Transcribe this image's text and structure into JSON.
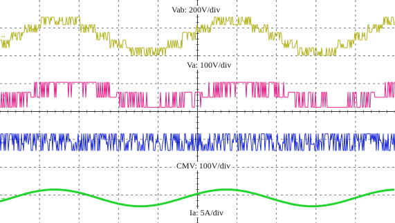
{
  "chart_data": {
    "type": "line",
    "grid": true,
    "grid_divisions": {
      "x": 10,
      "y": 8
    },
    "series": [
      {
        "id": "vab",
        "label": "Vab: 200V/div",
        "channel": "1",
        "color": "#b2b219",
        "waveform": "five-level line-to-line PWM staircase",
        "cycles": 2.3,
        "amplitude_div": 0.55,
        "center_div": 6.7
      },
      {
        "id": "va",
        "label": "Va: 100V/div",
        "channel": "2",
        "color": "#e8218a",
        "waveform": "two-level phase PWM square",
        "cycles": 2.3,
        "amplitude_div": 0.9,
        "center_div": 4.6
      },
      {
        "id": "cmv",
        "label": "CMV: 100V/div",
        "channel": "3",
        "color": "#1c2bd6",
        "waveform": "common-mode PWM noise",
        "cycles": 2.3,
        "amplitude_div": 0.6,
        "center_div": 2.9
      },
      {
        "id": "ia",
        "label": "Ia: 5A/div",
        "channel": "4",
        "color": "#22d42e",
        "waveform": "sinusoid",
        "cycles": 2.3,
        "amplitude_div": 0.3,
        "center_div": 0.9
      }
    ]
  }
}
